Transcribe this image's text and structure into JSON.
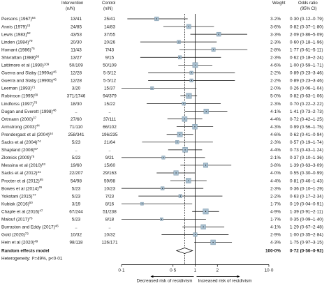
{
  "header": {
    "intervention": "Intervention",
    "intervention_unit": "(n/N)",
    "control": "Control",
    "control_unit": "(n/N)",
    "weight": "Weight",
    "odds_ratio": "Odds ratio",
    "ci": "(95% CI)"
  },
  "chart_data": {
    "type": "forest",
    "x_scale": "log",
    "xlim": [
      0.1,
      10
    ],
    "x_ticks": [
      {
        "value": 0.1,
        "label": "0·1"
      },
      {
        "value": 0.5,
        "label": "0·5"
      },
      {
        "value": 1,
        "label": "1"
      },
      {
        "value": 2,
        "label": "2"
      },
      {
        "value": 10,
        "label": "10·0"
      }
    ],
    "reference_line": 1,
    "pooled_line": 0.72,
    "direction_labels": {
      "left": "Decreased risk of recidivism",
      "right": "Increased risk of recidivism"
    },
    "studies": [
      {
        "study": "Persons (1967)",
        "ref": "64",
        "intervention": "13/41",
        "control": "25/41",
        "weight": "3·2%",
        "or_text": "0·30 (0·12–0·79)",
        "or": 0.3,
        "lo": 0.12,
        "hi": 0.79
      },
      {
        "study": "Annis (1979)",
        "ref": "43",
        "intervention": "24/85",
        "control": "14/83",
        "weight": "3·6%",
        "or_text": "0·82 (0·37–1·80)",
        "or": 0.82,
        "lo": 0.37,
        "hi": 1.8
      },
      {
        "study": "Lewis (1983)",
        "ref": "52",
        "intervention": "43/53",
        "control": "37/55",
        "weight": "3·3%",
        "or_text": "2·09 (0·86–5·09)",
        "or": 2.09,
        "lo": 0.86,
        "hi": 5.09
      },
      {
        "study": "Linden (1984)",
        "ref": "79",
        "intervention": "20/30",
        "control": "20/26",
        "weight": "2·3%",
        "or_text": "0·60 (0·18–1·96)",
        "or": 0.6,
        "lo": 0.18,
        "hi": 1.96
      },
      {
        "study": "Homant (1986)",
        "ref": "75",
        "intervention": "11/43",
        "control": "7/43",
        "weight": "2·8%",
        "or_text": "1·77 (0·61–5·11)",
        "or": 1.77,
        "lo": 0.61,
        "hi": 5.11
      },
      {
        "study": "Shivrattan (1988)",
        "ref": "68",
        "intervention": "13/27",
        "control": "9/15",
        "weight": "2·3%",
        "or_text": "0·62 (0·18–2·24)",
        "or": 0.62,
        "lo": 0.18,
        "hi": 2.24
      },
      {
        "study": "Lattimore et al (1990)",
        "ref": "109",
        "intervention": "50/109",
        "control": "50/109",
        "weight": "4·6%",
        "or_text": "1·00 (0·59–1·71)",
        "or": 1.0,
        "lo": 0.59,
        "hi": 1.71
      },
      {
        "study": "Guerra and Slaby (1990a)",
        "ref": "46",
        "intervention": "12/28",
        "control": "5·5/12",
        "weight": "2·2%",
        "or_text": "0·89 (0·23–3·46)",
        "or": 0.89,
        "lo": 0.23,
        "hi": 3.46
      },
      {
        "study": "Guerra and Slaby (1990b)",
        "ref": "46",
        "intervention": "12/28",
        "control": "5·5/12",
        "weight": "2·2%",
        "or_text": "0·89 (0·23–3·46)",
        "or": 0.89,
        "lo": 0.23,
        "hi": 3.46
      },
      {
        "study": "Leeman (1993)",
        "ref": "71",
        "intervention": "3/20",
        "control": "15/37",
        "weight": "2·0%",
        "or_text": "0·26 (0·06–1·04)",
        "or": 0.26,
        "lo": 0.06,
        "hi": 1.04
      },
      {
        "study": "Robinson (1995)",
        "ref": "69",
        "intervention": "371/1746",
        "control": "94/379",
        "weight": "5·0%",
        "or_text": "0·82 (0·63–1·06)",
        "or": 0.82,
        "lo": 0.63,
        "hi": 1.06
      },
      {
        "study": "Lindforss (1997)",
        "ref": "76",
        "intervention": "18/30",
        "control": "15/22",
        "weight": "2·3%",
        "or_text": "0·70 (0·22–2·22)",
        "or": 0.7,
        "lo": 0.22,
        "hi": 2.22
      },
      {
        "study": "Dugan and Everett (1998)",
        "ref": "48",
        "intervention": "..",
        "control": "..",
        "weight": "4·1%",
        "or_text": "1·41 (0·73–2·73)",
        "or": 1.41,
        "lo": 0.73,
        "hi": 2.73
      },
      {
        "study": "Ortmann (2000)",
        "ref": "37",
        "intervention": "27/60",
        "control": "37/111",
        "weight": "4·4%",
        "or_text": "0·72 (0·42–1·25)",
        "or": 0.72,
        "lo": 0.42,
        "hi": 1.25
      },
      {
        "study": "Armstrong (2003)",
        "ref": "44",
        "intervention": "71/110",
        "control": "66/102",
        "weight": "4·3%",
        "or_text": "0·99 (0·56–1·75)",
        "or": 0.99,
        "lo": 0.56,
        "hi": 1.75
      },
      {
        "study": "Prendergast et al (2004)",
        "ref": "54",
        "intervention": "258/341",
        "control": "196/235",
        "weight": "4·6%",
        "or_text": "0·62 (0·41–0·94)",
        "or": 0.62,
        "lo": 0.41,
        "hi": 0.94
      },
      {
        "study": "Sacks et al (2004)",
        "ref": "74",
        "intervention": "5/23",
        "control": "21/64",
        "weight": "2·3%",
        "or_text": "0·57 (0·19–1·74)",
        "or": 0.57,
        "lo": 0.19,
        "hi": 1.74
      },
      {
        "study": "Shapland (2008)",
        "ref": "67",
        "intervention": "..",
        "control": "..",
        "weight": "4·4%",
        "or_text": "0·73 (0·43–1·24)",
        "or": 0.73,
        "lo": 0.43,
        "hi": 1.24
      },
      {
        "study": "Zlotnick (2009)",
        "ref": "75",
        "intervention": "5/23",
        "control": "9/21",
        "weight": "2·1%",
        "or_text": "0·37 (0·10–1·36)",
        "or": 0.37,
        "lo": 0.1,
        "hi": 1.36
      },
      {
        "study": "Messina et al (2010)",
        "ref": "53",
        "intervention": "19/60",
        "control": "15/60",
        "weight": "3·8%",
        "or_text": "1·39 (0·63–3·09)",
        "or": 1.39,
        "lo": 0.63,
        "hi": 3.09
      },
      {
        "study": "Sacks et al (2012)",
        "ref": "41",
        "intervention": "22/207",
        "control": "29/163",
        "weight": "4·0%",
        "or_text": "0·55 (0·30–0·99)",
        "or": 0.55,
        "lo": 0.3,
        "hi": 0.99
      },
      {
        "study": "Procter et al (2012)",
        "ref": "65",
        "intervention": "54/98",
        "control": "59/98",
        "weight": "4·4%",
        "or_text": "0·81 (0·46–1·43)",
        "or": 0.81,
        "lo": 0.46,
        "hi": 1.43
      },
      {
        "study": "Bowes et al (2014)",
        "ref": "45",
        "intervention": "5/23",
        "control": "10/23",
        "weight": "2·3%",
        "or_text": "0·36 (0·10–1·29)",
        "or": 0.36,
        "lo": 0.1,
        "hi": 1.29
      },
      {
        "study": "Yokotani (2015)",
        "ref": "77",
        "intervention": "5/23",
        "control": "7/23",
        "weight": "2·2%",
        "or_text": "0·63 (0·17–2·34)",
        "or": 0.63,
        "lo": 0.17,
        "hi": 2.34
      },
      {
        "study": "Kubiak (2016)",
        "ref": "50",
        "intervention": "3/19",
        "control": "8/16",
        "weight": "1·7%",
        "or_text": "0·19 (0·04–0·91)",
        "or": 0.19,
        "lo": 0.04,
        "hi": 0.91
      },
      {
        "study": "Chaple et al (2016)",
        "ref": "47",
        "intervention": "67/244",
        "control": "51/238",
        "weight": "4·9%",
        "or_text": "1·39 (0·91–2·11)",
        "or": 1.39,
        "lo": 0.91,
        "hi": 2.11
      },
      {
        "study": "Malouf (2017)",
        "ref": "76",
        "intervention": "5/23",
        "control": "8/18",
        "weight": "1·7%",
        "or_text": "0·35 (0·09–1·40)",
        "or": 0.35,
        "lo": 0.09,
        "hi": 1.4
      },
      {
        "study": "Burraston and Eddy (2017)",
        "ref": "46",
        "intervention": "..",
        "control": "..",
        "weight": "4·1%",
        "or_text": "1·29 (0·67–2·48)",
        "or": 1.29,
        "lo": 0.67,
        "hi": 2.48
      },
      {
        "study": "Gold (2020)",
        "ref": "73",
        "intervention": "10/32",
        "control": "10/32",
        "weight": "2·9%",
        "or_text": "1·00 (0·35–2·84)",
        "or": 1.0,
        "lo": 0.35,
        "hi": 2.84
      },
      {
        "study": "Hein et al (2020)",
        "ref": "49",
        "intervention": "98/118",
        "control": "126/171",
        "weight": "4·3%",
        "or_text": "1·75 (0·97–3·15)",
        "or": 1.75,
        "lo": 0.97,
        "hi": 3.15
      }
    ],
    "pooled": {
      "label": "Random effects model",
      "weight": "100·0%",
      "or_text": "0·72 (0·56–0·92)",
      "or": 0.72,
      "lo": 0.56,
      "hi": 0.92
    },
    "heterogeneity": "Heterogeneity: I²=49%, p<0·01"
  }
}
